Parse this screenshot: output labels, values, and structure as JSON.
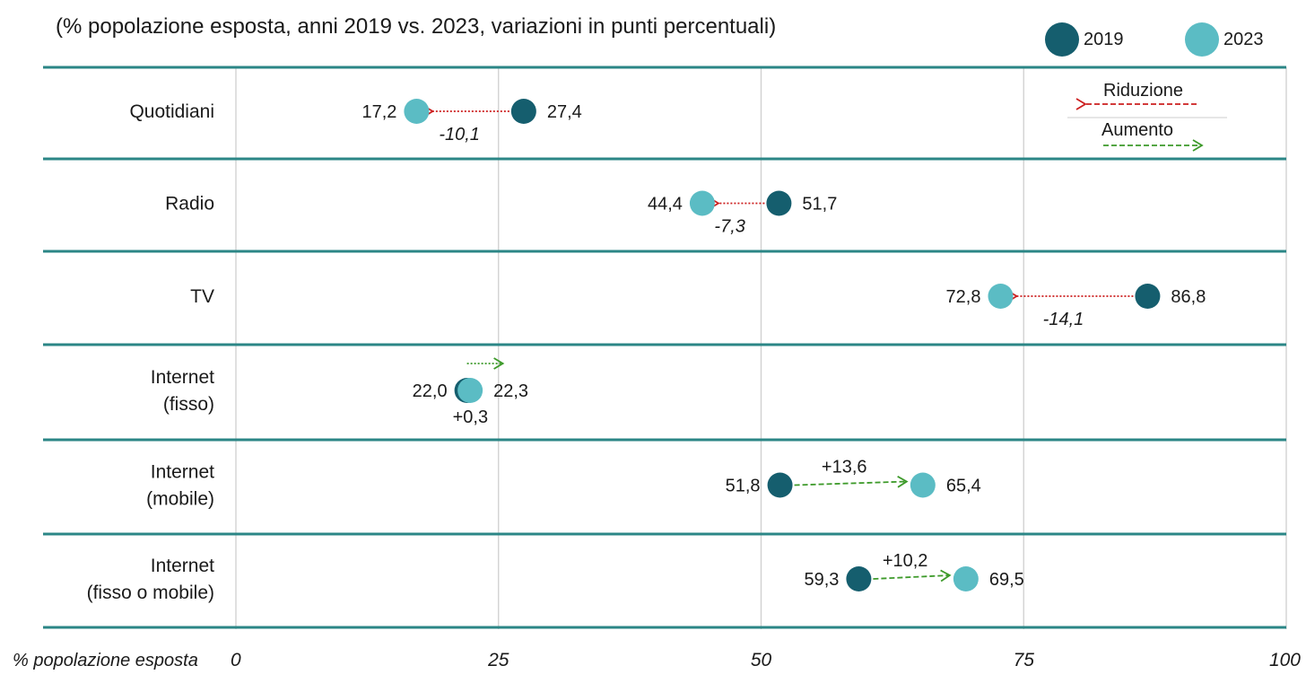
{
  "chart_data": {
    "type": "dumbbell",
    "title": "(% popolazione esposta, anni 2019 vs. 2023, variazioni in punti percentuali)",
    "xlabel": "% popolazione esposta",
    "xlim": [
      0,
      100
    ],
    "xticks": [
      "0",
      "25",
      "50",
      "75",
      "100"
    ],
    "xtick_values": [
      0,
      25,
      50,
      75,
      100
    ],
    "grid": true,
    "legend": {
      "placement": "top-right",
      "series": [
        {
          "name": "2019",
          "color": "#155e6e"
        },
        {
          "name": "2023",
          "color": "#5bbcc4"
        }
      ],
      "arrows": [
        {
          "label": "Riduzione",
          "color": "#cc1f1f"
        },
        {
          "label": "Aumento",
          "color": "#3d9a2a"
        }
      ]
    },
    "categories": [
      {
        "label_lines": [
          "Quotidiani"
        ],
        "v2019": 27.4,
        "v2023": 17.2,
        "label2019": "27,4",
        "label2023": "17,2",
        "delta": "-10,1",
        "direction": "down"
      },
      {
        "label_lines": [
          "Radio"
        ],
        "v2019": 51.7,
        "v2023": 44.4,
        "label2019": "51,7",
        "label2023": "44,4",
        "delta": "-7,3",
        "direction": "down"
      },
      {
        "label_lines": [
          "TV"
        ],
        "v2019": 86.8,
        "v2023": 72.8,
        "label2019": "86,8",
        "label2023": "72,8",
        "delta": "-14,1",
        "direction": "down"
      },
      {
        "label_lines": [
          "Internet",
          "(fisso)"
        ],
        "v2019": 22.0,
        "v2023": 22.3,
        "label2019": "22,0",
        "label2023": "22,3",
        "delta": "+0,3",
        "direction": "up"
      },
      {
        "label_lines": [
          "Internet",
          "(mobile)"
        ],
        "v2019": 51.8,
        "v2023": 65.4,
        "label2019": "51,8",
        "label2023": "65,4",
        "delta": "+13,6",
        "direction": "up"
      },
      {
        "label_lines": [
          "Internet",
          "(fisso o mobile)"
        ],
        "v2019": 59.3,
        "v2023": 69.5,
        "label2019": "59,3",
        "label2023": "69,5",
        "delta": "+10,2",
        "direction": "up"
      }
    ]
  }
}
